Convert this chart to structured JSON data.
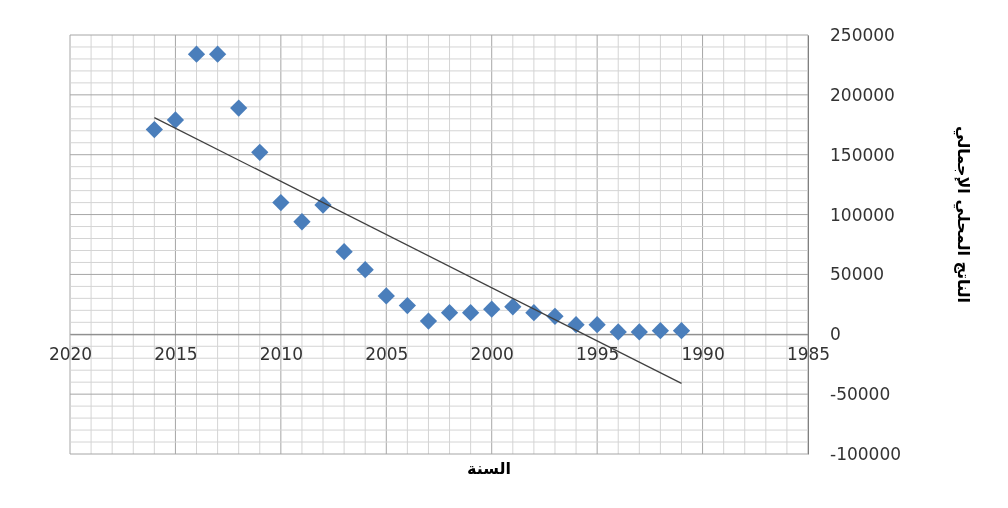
{
  "chart_data": {
    "type": "scatter",
    "xlabel": "السنة",
    "ylabel": "الناتج المحلي الإجمالي",
    "xlim": [
      2020,
      1985
    ],
    "xticks": [
      2020,
      {
        "value": 2019,
        "label": null
      },
      {
        "value": 2018,
        "label": null
      },
      {
        "value": 2017,
        "label": null
      },
      {
        "value": 2016,
        "label": null
      },
      2015,
      {
        "value": 2014,
        "label": null
      },
      {
        "value": 2013,
        "label": null
      },
      {
        "value": 2012,
        "label": null
      },
      {
        "value": 2011,
        "label": null
      },
      2010,
      {
        "value": 2009,
        "label": null
      },
      {
        "value": 2008,
        "label": null
      },
      {
        "value": 2007,
        "label": null
      },
      {
        "value": 2006,
        "label": null
      },
      2005,
      {
        "value": 2004,
        "label": null
      },
      {
        "value": 2003,
        "label": null
      },
      {
        "value": 2002,
        "label": null
      },
      {
        "value": 2001,
        "label": null
      },
      2000,
      {
        "value": 1999,
        "label": null
      },
      {
        "value": 1998,
        "label": null
      },
      {
        "value": 1997,
        "label": null
      },
      {
        "value": 1996,
        "label": null
      },
      1995,
      {
        "value": 1994,
        "label": null
      },
      {
        "value": 1993,
        "label": null
      },
      {
        "value": 1992,
        "label": null
      },
      {
        "value": 1991,
        "label": null
      },
      1990,
      {
        "value": 1989,
        "label": null
      },
      {
        "value": 1988,
        "label": null
      },
      {
        "value": 1987,
        "label": null
      },
      {
        "value": 1986,
        "label": null
      },
      1985
    ],
    "ylim": [
      -100000,
      250000
    ],
    "yticks": [
      -100000,
      {
        "value": -90000,
        "label": null
      },
      {
        "value": -80000,
        "label": null
      },
      {
        "value": -70000,
        "label": null
      },
      {
        "value": -60000,
        "label": null
      },
      -50000,
      {
        "value": -40000,
        "label": null
      },
      {
        "value": -30000,
        "label": null
      },
      {
        "value": -20000,
        "label": null
      },
      {
        "value": -10000,
        "label": null
      },
      0,
      {
        "value": 10000,
        "label": null
      },
      {
        "value": 20000,
        "label": null
      },
      {
        "value": 30000,
        "label": null
      },
      {
        "value": 40000,
        "label": null
      },
      50000,
      {
        "value": 60000,
        "label": null
      },
      {
        "value": 70000,
        "label": null
      },
      {
        "value": 80000,
        "label": null
      },
      {
        "value": 90000,
        "label": null
      },
      100000,
      {
        "value": 110000,
        "label": null
      },
      {
        "value": 120000,
        "label": null
      },
      {
        "value": 130000,
        "label": null
      },
      {
        "value": 140000,
        "label": null
      },
      150000,
      {
        "value": 160000,
        "label": null
      },
      {
        "value": 170000,
        "label": null
      },
      {
        "value": 180000,
        "label": null
      },
      {
        "value": 190000,
        "label": null
      },
      200000,
      {
        "value": 210000,
        "label": null
      },
      {
        "value": 220000,
        "label": null
      },
      {
        "value": 230000,
        "label": null
      },
      {
        "value": 240000,
        "label": null
      },
      250000
    ],
    "grid": true,
    "series": [
      {
        "marker": "diamond",
        "color": "#4a7ebb",
        "x": [
          2016,
          2015,
          2014,
          2013,
          2012,
          2011,
          2010,
          2009,
          2008,
          2007,
          2006,
          2005,
          2004,
          2003,
          2002,
          2001,
          2000,
          1999,
          1998,
          1997,
          1996,
          1995,
          1994,
          1993,
          1992,
          1991
        ],
        "values": [
          171000,
          179000,
          234000,
          234000,
          189000,
          152000,
          110000,
          94000,
          108000,
          69000,
          54000,
          32000,
          24000,
          11000,
          18000,
          18000,
          21000,
          23000,
          18000,
          15000,
          8000,
          8000,
          2000,
          2000,
          3000,
          3000
        ]
      },
      {
        "type": "line",
        "color": "#404040",
        "line_style": "solid",
        "x": [
          2016,
          1991
        ],
        "values": [
          181000,
          -41000
        ]
      }
    ]
  }
}
